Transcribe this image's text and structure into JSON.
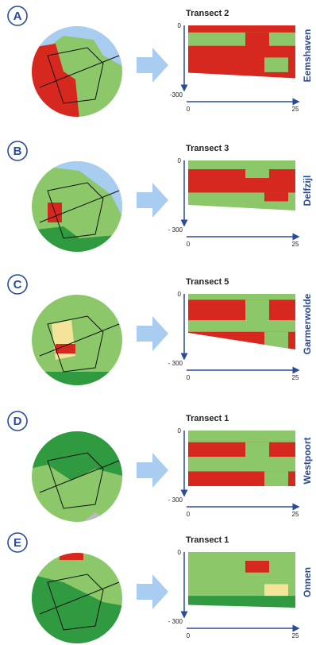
{
  "panels": [
    {
      "label": "A",
      "transect": "Transect 2",
      "site": "Eemshaven",
      "depth_top": "0",
      "depth_bottom": "-300",
      "distance_start": "0",
      "distance_end": "25"
    },
    {
      "label": "B",
      "transect": "Transect 3",
      "site": "Delfzijl",
      "depth_top": "0",
      "depth_bottom": "- 300",
      "distance_start": "0",
      "distance_end": "25"
    },
    {
      "label": "C",
      "transect": "Transect 5",
      "site": "Garmerwolde",
      "depth_top": "0",
      "depth_bottom": "- 300",
      "distance_start": "0",
      "distance_end": "25"
    },
    {
      "label": "D",
      "transect": "Transect 1",
      "site": "Westpoort",
      "depth_top": "0",
      "depth_bottom": "- 300",
      "distance_start": "0",
      "distance_end": "25"
    },
    {
      "label": "E",
      "transect": "Transect 1",
      "site": "Onnen",
      "depth_top": "0",
      "depth_bottom": "- 300",
      "distance_start": "0",
      "distance_end": "25"
    }
  ]
}
